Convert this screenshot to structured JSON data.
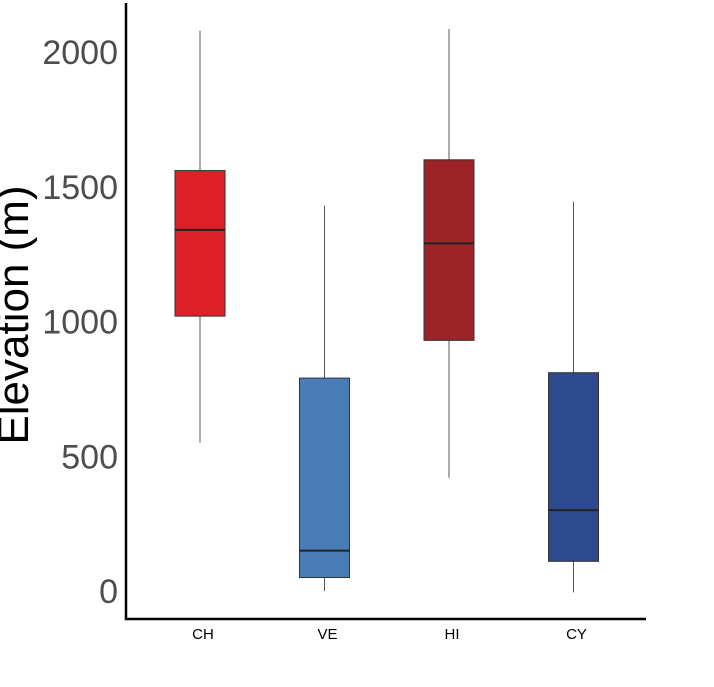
{
  "chart_data": {
    "type": "box",
    "title": "",
    "xlabel": "",
    "ylabel": "Elevation (m)",
    "ylim": [
      -100,
      2200
    ],
    "yticks": [
      0,
      500,
      1000,
      1500,
      2000
    ],
    "grid": false,
    "legend": "none",
    "categories": [
      "CH",
      "VE",
      "HI",
      "CY"
    ],
    "boxes": [
      {
        "category": "CH",
        "whisker_low": 550,
        "q1": 1020,
        "median": 1340,
        "q3": 1560,
        "whisker_high": 2080,
        "color": "#dd2027"
      },
      {
        "category": "VE",
        "whisker_low": 0,
        "q1": 50,
        "median": 150,
        "q3": 790,
        "whisker_high": 1430,
        "color": "#4a7db7"
      },
      {
        "category": "HI",
        "whisker_low": 420,
        "q1": 930,
        "median": 1290,
        "q3": 1600,
        "whisker_high": 2085,
        "color": "#9c2428"
      },
      {
        "category": "CY",
        "whisker_low": -5,
        "q1": 110,
        "median": 300,
        "q3": 810,
        "whisker_high": 1445,
        "color": "#2d4a90"
      }
    ]
  }
}
